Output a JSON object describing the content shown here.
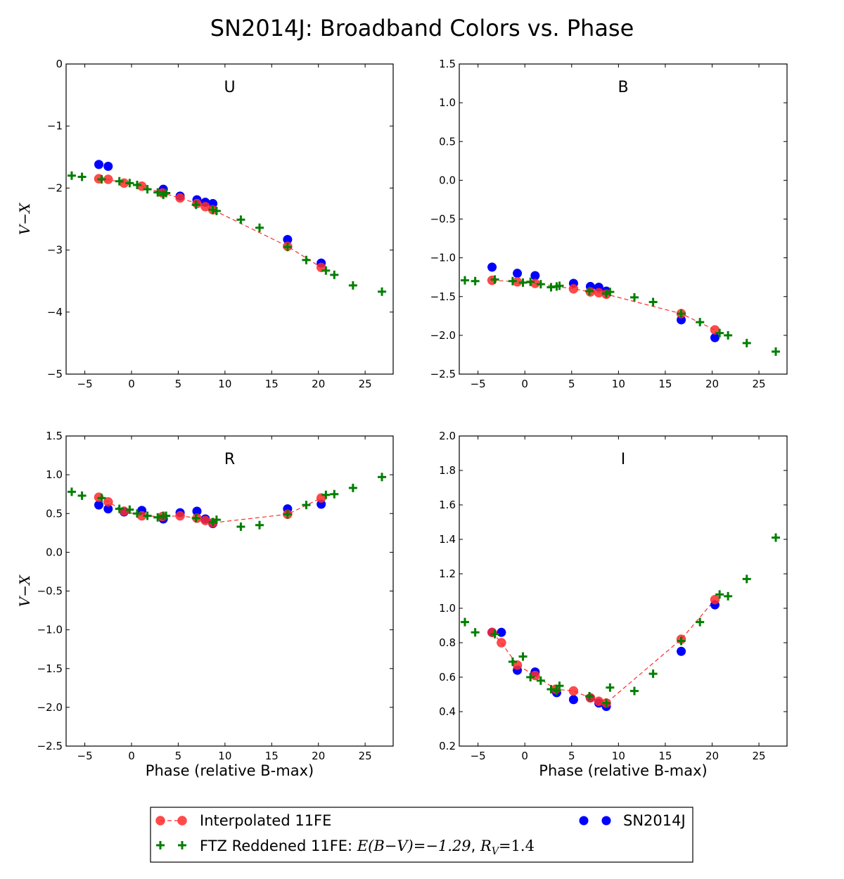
{
  "figure": {
    "title": "SN2014J: Broadband Colors vs. Phase"
  },
  "legend": {
    "interpolated_label": "Interpolated 11FE",
    "ftz_label_prefix": "FTZ Reddened 11FE: ",
    "ftz_label_ebv": "E(B−V)=−1.29",
    "ftz_label_sep": ", ",
    "ftz_label_rv": "R",
    "ftz_label_rv_sub": "V",
    "ftz_label_rv_val": "=1.4",
    "sn_label": "SN2014J"
  },
  "colors": {
    "interpolated": "#ff2b2b",
    "ftz": "#007f00",
    "sn": "#0000ff"
  },
  "chart_data": [
    {
      "type": "scatter",
      "title": "U",
      "xlabel": "",
      "ylabel": "V−X",
      "xlim": [
        -7,
        28
      ],
      "ylim": [
        -5,
        0
      ],
      "xticks": [
        -5,
        0,
        5,
        10,
        15,
        20,
        25
      ],
      "yticks": [
        -5,
        -4,
        -3,
        -2,
        -1,
        0
      ],
      "series": [
        {
          "kind": "ftz",
          "x": [
            -6.4,
            -5.3,
            -3.2,
            -1.3,
            -0.2,
            0.6,
            1.7,
            2.8,
            3.4,
            3.7,
            6.9,
            8.7,
            9.1,
            11.7,
            13.7,
            16.7,
            18.7,
            20.8,
            21.7,
            23.7,
            26.8
          ],
          "y": [
            -1.8,
            -1.82,
            -1.86,
            -1.89,
            -1.92,
            -1.95,
            -2.02,
            -2.07,
            -2.11,
            -2.08,
            -2.27,
            -2.35,
            -2.37,
            -2.51,
            -2.64,
            -2.95,
            -3.16,
            -3.33,
            -3.4,
            -3.57,
            -3.67
          ]
        },
        {
          "kind": "interpolated",
          "x": [
            -3.5,
            -2.5,
            -0.8,
            1.1,
            3.3,
            5.2,
            7.0,
            7.9,
            8.7,
            16.7,
            20.3
          ],
          "y": [
            -1.85,
            -1.86,
            -1.92,
            -1.97,
            -2.08,
            -2.16,
            -2.25,
            -2.3,
            -2.35,
            -2.94,
            -3.28
          ]
        },
        {
          "kind": "sn",
          "x": [
            -3.5,
            -2.5,
            3.4,
            5.2,
            7.0,
            7.9,
            8.7,
            16.7,
            20.3
          ],
          "y": [
            -1.62,
            -1.65,
            -2.02,
            -2.13,
            -2.19,
            -2.23,
            -2.25,
            -2.83,
            -3.21
          ]
        }
      ]
    },
    {
      "type": "scatter",
      "title": "B",
      "xlabel": "",
      "ylabel": "",
      "xlim": [
        -7,
        28
      ],
      "ylim": [
        -2.5,
        1.5
      ],
      "xticks": [
        -5,
        0,
        5,
        10,
        15,
        20,
        25
      ],
      "yticks": [
        -2.5,
        -2.0,
        -1.5,
        -1.0,
        -0.5,
        0.0,
        0.5,
        1.0,
        1.5
      ],
      "series": [
        {
          "kind": "ftz",
          "x": [
            -6.4,
            -5.3,
            -3.2,
            -1.3,
            -0.2,
            0.6,
            1.7,
            2.8,
            3.4,
            3.7,
            6.9,
            8.7,
            9.1,
            11.7,
            13.7,
            16.7,
            18.7,
            20.8,
            21.7,
            23.7,
            26.8
          ],
          "y": [
            -1.29,
            -1.3,
            -1.28,
            -1.3,
            -1.32,
            -1.31,
            -1.34,
            -1.38,
            -1.37,
            -1.36,
            -1.43,
            -1.46,
            -1.44,
            -1.51,
            -1.57,
            -1.72,
            -1.83,
            -1.97,
            -2.0,
            -2.1,
            -2.21
          ]
        },
        {
          "kind": "interpolated",
          "x": [
            -3.5,
            -0.8,
            1.1,
            5.2,
            7.0,
            7.9,
            8.7,
            16.7,
            20.3
          ],
          "y": [
            -1.29,
            -1.31,
            -1.33,
            -1.4,
            -1.44,
            -1.45,
            -1.47,
            -1.72,
            -1.93
          ]
        },
        {
          "kind": "sn",
          "x": [
            -3.5,
            -0.8,
            1.1,
            5.2,
            7.0,
            7.9,
            8.7,
            16.7,
            20.3
          ],
          "y": [
            -1.12,
            -1.2,
            -1.23,
            -1.33,
            -1.37,
            -1.38,
            -1.43,
            -1.8,
            -2.03
          ]
        }
      ]
    },
    {
      "type": "scatter",
      "title": "R",
      "xlabel": "Phase (relative B-max)",
      "ylabel": "V−X",
      "xlim": [
        -7,
        28
      ],
      "ylim": [
        -2.5,
        1.5
      ],
      "xticks": [
        -5,
        0,
        5,
        10,
        15,
        20,
        25
      ],
      "yticks": [
        -2.5,
        -2.0,
        -1.5,
        -1.0,
        -0.5,
        0.0,
        0.5,
        1.0,
        1.5
      ],
      "series": [
        {
          "kind": "ftz",
          "x": [
            -6.4,
            -5.3,
            -3.2,
            -1.3,
            -0.2,
            0.6,
            1.7,
            2.8,
            3.4,
            3.7,
            6.9,
            8.7,
            9.1,
            11.7,
            13.7,
            16.7,
            18.7,
            20.8,
            21.7,
            23.7,
            26.8
          ],
          "y": [
            0.78,
            0.73,
            0.7,
            0.56,
            0.55,
            0.5,
            0.47,
            0.45,
            0.47,
            0.47,
            0.44,
            0.39,
            0.42,
            0.33,
            0.35,
            0.49,
            0.61,
            0.74,
            0.75,
            0.83,
            0.97
          ]
        },
        {
          "kind": "interpolated",
          "x": [
            -3.5,
            -2.5,
            -0.8,
            1.1,
            3.3,
            5.2,
            7.0,
            7.9,
            8.7,
            16.7,
            20.3
          ],
          "y": [
            0.71,
            0.65,
            0.53,
            0.47,
            0.46,
            0.47,
            0.44,
            0.41,
            0.38,
            0.49,
            0.7
          ]
        },
        {
          "kind": "sn",
          "x": [
            -3.5,
            -2.5,
            -0.8,
            1.1,
            3.4,
            5.2,
            7.0,
            7.9,
            8.7,
            16.7,
            20.3
          ],
          "y": [
            0.61,
            0.56,
            0.52,
            0.54,
            0.43,
            0.51,
            0.53,
            0.43,
            0.37,
            0.56,
            0.62
          ]
        }
      ]
    },
    {
      "type": "scatter",
      "title": "I",
      "xlabel": "Phase (relative B-max)",
      "ylabel": "",
      "xlim": [
        -7,
        28
      ],
      "ylim": [
        0.2,
        2.0
      ],
      "xticks": [
        -5,
        0,
        5,
        10,
        15,
        20,
        25
      ],
      "yticks": [
        0.2,
        0.4,
        0.6,
        0.8,
        1.0,
        1.2,
        1.4,
        1.6,
        1.8,
        2.0
      ],
      "series": [
        {
          "kind": "ftz",
          "x": [
            -6.4,
            -5.3,
            -3.2,
            -1.3,
            -0.2,
            0.6,
            1.7,
            2.8,
            3.4,
            3.7,
            6.9,
            8.7,
            9.1,
            11.7,
            13.7,
            16.7,
            18.7,
            20.8,
            21.7,
            23.7,
            26.8
          ],
          "y": [
            0.92,
            0.86,
            0.85,
            0.69,
            0.72,
            0.6,
            0.58,
            0.53,
            0.52,
            0.55,
            0.49,
            0.45,
            0.54,
            0.52,
            0.62,
            0.81,
            0.92,
            1.08,
            1.07,
            1.17,
            1.41
          ]
        },
        {
          "kind": "interpolated",
          "x": [
            -3.5,
            -2.5,
            -0.8,
            1.1,
            3.3,
            5.2,
            7.0,
            7.9,
            8.7,
            16.7,
            20.3
          ],
          "y": [
            0.86,
            0.8,
            0.67,
            0.61,
            0.53,
            0.52,
            0.48,
            0.46,
            0.45,
            0.82,
            1.05
          ]
        },
        {
          "kind": "sn",
          "x": [
            -3.5,
            -2.5,
            -0.8,
            1.1,
            3.4,
            5.2,
            7.0,
            7.9,
            8.7,
            16.7,
            20.3
          ],
          "y": [
            0.86,
            0.86,
            0.64,
            0.63,
            0.51,
            0.47,
            0.48,
            0.45,
            0.43,
            0.75,
            1.02
          ]
        }
      ]
    }
  ]
}
